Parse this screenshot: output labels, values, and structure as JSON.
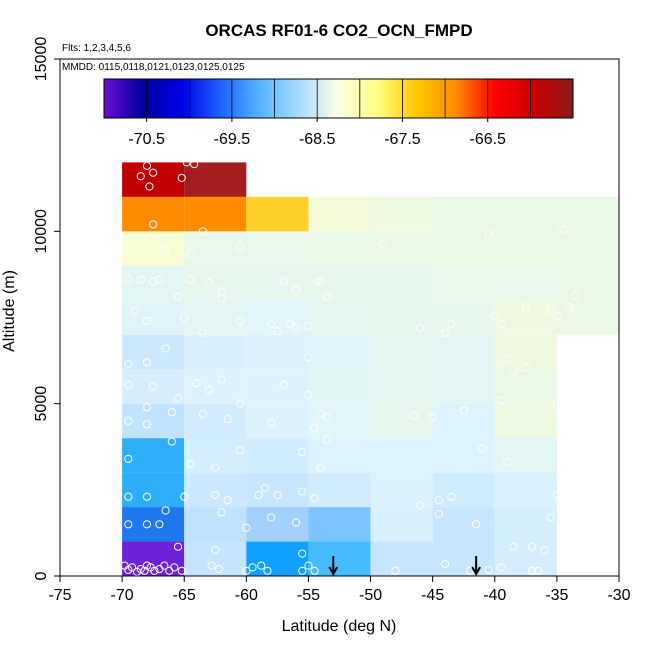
{
  "chart_data": {
    "type": "heatmap",
    "title": "ORCAS RF01-6 CO2_OCN_FMPD",
    "flights_label": "Flts: 1,2,3,4,5,6",
    "dates_label": "MMDD: 0115,0118,0121,0123,0125,0125",
    "xlabel": "Latitude (deg N)",
    "ylabel": "Altitude (m)",
    "xlim": [
      -75,
      -30
    ],
    "ylim": [
      0,
      15000
    ],
    "x_ticks": [
      "-75",
      "-70",
      "-65",
      "-60",
      "-55",
      "-50",
      "-45",
      "-40",
      "-35",
      "-30"
    ],
    "y_ticks": [
      "0",
      "5000",
      "10000",
      "15000"
    ],
    "colorbar": {
      "min": -71.0,
      "max": -65.5,
      "tick_values": [
        -70.5,
        -69.5,
        -68.5,
        -67.5,
        -66.5
      ],
      "tick_labels": [
        "-70.5",
        "-69.5",
        "-68.5",
        "-67.5",
        "-66.5"
      ],
      "colors": [
        "#6a0dd6",
        "#0000a0",
        "#0000e8",
        "#1e64ff",
        "#56b4ff",
        "#a8dcff",
        "#ffffe6",
        "#ffff80",
        "#ffc800",
        "#ff8c00",
        "#ff0000",
        "#c80000",
        "#8b1a1a"
      ]
    },
    "cells": [
      {
        "x0": -70,
        "x1": -65,
        "y0": 0,
        "y1": 1000,
        "color": "#6e22d8"
      },
      {
        "x0": -65,
        "x1": -60,
        "y0": 0,
        "y1": 1000,
        "color": "#c4e4ff"
      },
      {
        "x0": -60,
        "x1": -55,
        "y0": 0,
        "y1": 1000,
        "color": "#10a0ff"
      },
      {
        "x0": -55,
        "x1": -50,
        "y0": 0,
        "y1": 1000,
        "color": "#46bcff"
      },
      {
        "x0": -50,
        "x1": -45,
        "y0": 0,
        "y1": 1000,
        "color": "#c6e6ff"
      },
      {
        "x0": -45,
        "x1": -40,
        "y0": 0,
        "y1": 1000,
        "color": "#c6e6ff"
      },
      {
        "x0": -40,
        "x1": -35,
        "y0": 0,
        "y1": 1000,
        "color": "#d4eeff"
      },
      {
        "x0": -70,
        "x1": -65,
        "y0": 1000,
        "y1": 2000,
        "color": "#1e78ee"
      },
      {
        "x0": -65,
        "x1": -60,
        "y0": 1000,
        "y1": 2000,
        "color": "#bfe2ff"
      },
      {
        "x0": -60,
        "x1": -55,
        "y0": 1000,
        "y1": 2000,
        "color": "#a4d0ff"
      },
      {
        "x0": -55,
        "x1": -50,
        "y0": 1000,
        "y1": 2000,
        "color": "#7cc4ff"
      },
      {
        "x0": -50,
        "x1": -45,
        "y0": 1000,
        "y1": 2000,
        "color": "#d8f0ff"
      },
      {
        "x0": -45,
        "x1": -40,
        "y0": 1000,
        "y1": 2000,
        "color": "#c6e6ff"
      },
      {
        "x0": -40,
        "x1": -35,
        "y0": 1000,
        "y1": 2000,
        "color": "#d4f0ff"
      },
      {
        "x0": -70,
        "x1": -65,
        "y0": 2000,
        "y1": 3000,
        "color": "#2eaef6"
      },
      {
        "x0": -65,
        "x1": -60,
        "y0": 2000,
        "y1": 3000,
        "color": "#cce8ff"
      },
      {
        "x0": -60,
        "x1": -55,
        "y0": 2000,
        "y1": 3000,
        "color": "#c6e6ff"
      },
      {
        "x0": -55,
        "x1": -50,
        "y0": 2000,
        "y1": 3000,
        "color": "#d2ecff"
      },
      {
        "x0": -50,
        "x1": -45,
        "y0": 2000,
        "y1": 3000,
        "color": "#dbf2ff"
      },
      {
        "x0": -45,
        "x1": -40,
        "y0": 2000,
        "y1": 3000,
        "color": "#cdecff"
      },
      {
        "x0": -40,
        "x1": -35,
        "y0": 2000,
        "y1": 3000,
        "color": "#d8f2ff"
      },
      {
        "x0": -70,
        "x1": -65,
        "y0": 3000,
        "y1": 4000,
        "color": "#2eaef6"
      },
      {
        "x0": -65,
        "x1": -60,
        "y0": 3000,
        "y1": 4000,
        "color": "#d2eeff"
      },
      {
        "x0": -60,
        "x1": -55,
        "y0": 3000,
        "y1": 4000,
        "color": "#d0ecff"
      },
      {
        "x0": -55,
        "x1": -50,
        "y0": 3000,
        "y1": 4000,
        "color": "#dcf4ff"
      },
      {
        "x0": -50,
        "x1": -45,
        "y0": 3000,
        "y1": 4000,
        "color": "#dcf4ff"
      },
      {
        "x0": -45,
        "x1": -40,
        "y0": 3000,
        "y1": 4000,
        "color": "#dcf4ff"
      },
      {
        "x0": -40,
        "x1": -35,
        "y0": 3000,
        "y1": 4000,
        "color": "#e2f6f4"
      },
      {
        "x0": -70,
        "x1": -65,
        "y0": 4000,
        "y1": 5000,
        "color": "#c0e4ff"
      },
      {
        "x0": -65,
        "x1": -60,
        "y0": 4000,
        "y1": 5000,
        "color": "#d2ecff"
      },
      {
        "x0": -60,
        "x1": -55,
        "y0": 4000,
        "y1": 5000,
        "color": "#dcf2ff"
      },
      {
        "x0": -55,
        "x1": -50,
        "y0": 4000,
        "y1": 5000,
        "color": "#e0f6f8"
      },
      {
        "x0": -50,
        "x1": -45,
        "y0": 4000,
        "y1": 5000,
        "color": "#e6f8ee"
      },
      {
        "x0": -45,
        "x1": -40,
        "y0": 4000,
        "y1": 5000,
        "color": "#dcf4ff"
      },
      {
        "x0": -40,
        "x1": -35,
        "y0": 4000,
        "y1": 5000,
        "color": "#eef9e2"
      },
      {
        "x0": -70,
        "x1": -65,
        "y0": 5000,
        "y1": 6000,
        "color": "#d6eeff"
      },
      {
        "x0": -65,
        "x1": -60,
        "y0": 5000,
        "y1": 6000,
        "color": "#dcf2ff"
      },
      {
        "x0": -60,
        "x1": -55,
        "y0": 5000,
        "y1": 6000,
        "color": "#dcf2ff"
      },
      {
        "x0": -55,
        "x1": -50,
        "y0": 5000,
        "y1": 6000,
        "color": "#e0f6f4"
      },
      {
        "x0": -50,
        "x1": -45,
        "y0": 5000,
        "y1": 6000,
        "color": "#e4f6f2"
      },
      {
        "x0": -45,
        "x1": -40,
        "y0": 5000,
        "y1": 6000,
        "color": "#e2f6f4"
      },
      {
        "x0": -40,
        "x1": -35,
        "y0": 5000,
        "y1": 6000,
        "color": "#eaf8e6"
      },
      {
        "x0": -70,
        "x1": -65,
        "y0": 6000,
        "y1": 7000,
        "color": "#cbe8ff"
      },
      {
        "x0": -65,
        "x1": -60,
        "y0": 6000,
        "y1": 7000,
        "color": "#d8f0ff"
      },
      {
        "x0": -60,
        "x1": -55,
        "y0": 6000,
        "y1": 7000,
        "color": "#dcf2ff"
      },
      {
        "x0": -55,
        "x1": -50,
        "y0": 6000,
        "y1": 7000,
        "color": "#dff4fa"
      },
      {
        "x0": -50,
        "x1": -45,
        "y0": 6000,
        "y1": 7000,
        "color": "#e4f6f0"
      },
      {
        "x0": -45,
        "x1": -40,
        "y0": 6000,
        "y1": 7000,
        "color": "#e2f6f4"
      },
      {
        "x0": -40,
        "x1": -35,
        "y0": 6000,
        "y1": 7000,
        "color": "#eef9e0"
      },
      {
        "x0": -70,
        "x1": -65,
        "y0": 7000,
        "y1": 8000,
        "color": "#dff4f8"
      },
      {
        "x0": -65,
        "x1": -60,
        "y0": 7000,
        "y1": 8000,
        "color": "#e2f6f4"
      },
      {
        "x0": -60,
        "x1": -55,
        "y0": 7000,
        "y1": 8000,
        "color": "#e0f6f8"
      },
      {
        "x0": -55,
        "x1": -50,
        "y0": 7000,
        "y1": 8000,
        "color": "#e4f6f0"
      },
      {
        "x0": -50,
        "x1": -45,
        "y0": 7000,
        "y1": 8000,
        "color": "#e6f8ee"
      },
      {
        "x0": -45,
        "x1": -40,
        "y0": 7000,
        "y1": 8000,
        "color": "#e6f8ec"
      },
      {
        "x0": -40,
        "x1": -35,
        "y0": 7000,
        "y1": 8000,
        "color": "#eef9e0"
      },
      {
        "x0": -35,
        "x1": -30,
        "y0": 7000,
        "y1": 8000,
        "color": "#eaf8e6"
      },
      {
        "x0": -70,
        "x1": -65,
        "y0": 8000,
        "y1": 9000,
        "color": "#e2f6f4"
      },
      {
        "x0": -65,
        "x1": -60,
        "y0": 8000,
        "y1": 9000,
        "color": "#e6f8ee"
      },
      {
        "x0": -60,
        "x1": -55,
        "y0": 8000,
        "y1": 9000,
        "color": "#e6f8ee"
      },
      {
        "x0": -55,
        "x1": -50,
        "y0": 8000,
        "y1": 9000,
        "color": "#e6f8ec"
      },
      {
        "x0": -50,
        "x1": -45,
        "y0": 8000,
        "y1": 9000,
        "color": "#e6f8ec"
      },
      {
        "x0": -45,
        "x1": -40,
        "y0": 8000,
        "y1": 9000,
        "color": "#e8f8ea"
      },
      {
        "x0": -40,
        "x1": -35,
        "y0": 8000,
        "y1": 9000,
        "color": "#e8f8ea"
      },
      {
        "x0": -35,
        "x1": -30,
        "y0": 8000,
        "y1": 9000,
        "color": "#eaf8e6"
      },
      {
        "x0": -70,
        "x1": -65,
        "y0": 9000,
        "y1": 10000,
        "color": "#f8fcd2"
      },
      {
        "x0": -65,
        "x1": -60,
        "y0": 9000,
        "y1": 10000,
        "color": "#e8f8ea"
      },
      {
        "x0": -60,
        "x1": -55,
        "y0": 9000,
        "y1": 10000,
        "color": "#e8f8ea"
      },
      {
        "x0": -55,
        "x1": -50,
        "y0": 9000,
        "y1": 10000,
        "color": "#eaf8e6"
      },
      {
        "x0": -50,
        "x1": -45,
        "y0": 9000,
        "y1": 10000,
        "color": "#eaf8e6"
      },
      {
        "x0": -45,
        "x1": -40,
        "y0": 9000,
        "y1": 10000,
        "color": "#eaf8e6"
      },
      {
        "x0": -40,
        "x1": -35,
        "y0": 9000,
        "y1": 10000,
        "color": "#eaf8e6"
      },
      {
        "x0": -35,
        "x1": -30,
        "y0": 9000,
        "y1": 10000,
        "color": "#eaf8e6"
      },
      {
        "x0": -70,
        "x1": -65,
        "y0": 10000,
        "y1": 11000,
        "color": "#ff8c00"
      },
      {
        "x0": -65,
        "x1": -60,
        "y0": 10000,
        "y1": 11000,
        "color": "#ff8c00"
      },
      {
        "x0": -60,
        "x1": -55,
        "y0": 10000,
        "y1": 11000,
        "color": "#ffd02a"
      },
      {
        "x0": -55,
        "x1": -50,
        "y0": 10000,
        "y1": 11000,
        "color": "#f4fad8"
      },
      {
        "x0": -50,
        "x1": -45,
        "y0": 10000,
        "y1": 11000,
        "color": "#eefae0"
      },
      {
        "x0": -45,
        "x1": -40,
        "y0": 10000,
        "y1": 11000,
        "color": "#eaf8e6"
      },
      {
        "x0": -40,
        "x1": -35,
        "y0": 10000,
        "y1": 11000,
        "color": "#eaf8e6"
      },
      {
        "x0": -35,
        "x1": -30,
        "y0": 10000,
        "y1": 11000,
        "color": "#eaf8e6"
      },
      {
        "x0": -70,
        "x1": -65,
        "y0": 11000,
        "y1": 12000,
        "color": "#c00000"
      },
      {
        "x0": -65,
        "x1": -60,
        "y0": 11000,
        "y1": 12000,
        "color": "#a41e1e"
      }
    ],
    "points": [
      [
        -68.0,
        11900
      ],
      [
        -67.5,
        11700
      ],
      [
        -68.5,
        11600
      ],
      [
        -67.8,
        11300
      ],
      [
        -65.2,
        11550
      ],
      [
        -64.8,
        12000
      ],
      [
        -64.2,
        11950
      ],
      [
        -67.5,
        10200
      ],
      [
        -63.5,
        10000
      ],
      [
        -66.5,
        9450
      ],
      [
        -64.5,
        9350
      ],
      [
        -60.5,
        9550
      ],
      [
        -49.0,
        9650
      ],
      [
        -40.5,
        9900
      ],
      [
        -34.5,
        10050
      ],
      [
        -69.5,
        8600
      ],
      [
        -68.5,
        8600
      ],
      [
        -67.5,
        8550
      ],
      [
        -67.0,
        8600
      ],
      [
        -64.5,
        8600
      ],
      [
        -63.0,
        8500
      ],
      [
        -62.0,
        8250
      ],
      [
        -57.0,
        8550
      ],
      [
        -56.0,
        8300
      ],
      [
        -54.3,
        8550
      ],
      [
        -54.0,
        8550
      ],
      [
        -53.5,
        8100
      ],
      [
        -65.5,
        8100
      ],
      [
        -62.0,
        8050
      ],
      [
        -69.0,
        7700
      ],
      [
        -68.0,
        7400
      ],
      [
        -65.0,
        7500
      ],
      [
        -63.5,
        7050
      ],
      [
        -60.5,
        7400
      ],
      [
        -58.0,
        7300
      ],
      [
        -57.5,
        7100
      ],
      [
        -56.5,
        7300
      ],
      [
        -56.0,
        7200
      ],
      [
        -55.0,
        7250
      ],
      [
        -46.0,
        7200
      ],
      [
        -44.0,
        7050
      ],
      [
        -43.5,
        7300
      ],
      [
        -40.0,
        7550
      ],
      [
        -39.5,
        7300
      ],
      [
        -37.5,
        7800
      ],
      [
        -35.0,
        7550
      ],
      [
        -34.0,
        7800
      ],
      [
        -33.5,
        8150
      ],
      [
        -35.5,
        7700
      ],
      [
        -69.5,
        6150
      ],
      [
        -68.0,
        6200
      ],
      [
        -66.5,
        6600
      ],
      [
        -55.0,
        6350
      ],
      [
        -39.0,
        6300
      ],
      [
        -38.5,
        5950
      ],
      [
        -37.5,
        6050
      ],
      [
        -69.5,
        5550
      ],
      [
        -67.5,
        5500
      ],
      [
        -64.0,
        5600
      ],
      [
        -63.0,
        5400
      ],
      [
        -62.0,
        5700
      ],
      [
        -65.5,
        5150
      ],
      [
        -66.0,
        4750
      ],
      [
        -60.5,
        5000
      ],
      [
        -57.0,
        5550
      ],
      [
        -55.0,
        5250
      ],
      [
        -53.5,
        4600
      ],
      [
        -46.5,
        4650
      ],
      [
        -45.0,
        4600
      ],
      [
        -42.5,
        4800
      ],
      [
        -39.5,
        5100
      ],
      [
        -35.0,
        4950
      ],
      [
        -68.0,
        4900
      ],
      [
        -68.0,
        4400
      ],
      [
        -69.5,
        4500
      ],
      [
        -63.5,
        4700
      ],
      [
        -61.5,
        4550
      ],
      [
        -58.0,
        4450
      ],
      [
        -54.5,
        4300
      ],
      [
        -54.0,
        4700
      ],
      [
        -60.5,
        3650
      ],
      [
        -66.0,
        3900
      ],
      [
        -64.5,
        3250
      ],
      [
        -62.5,
        3150
      ],
      [
        -55.5,
        3600
      ],
      [
        -54.0,
        3150
      ],
      [
        -53.5,
        3950
      ],
      [
        -41.0,
        3700
      ],
      [
        -39.0,
        3300
      ],
      [
        -69.5,
        3400
      ],
      [
        -69.5,
        2300
      ],
      [
        -68.0,
        2300
      ],
      [
        -65.0,
        2300
      ],
      [
        -62.5,
        2350
      ],
      [
        -61.5,
        2200
      ],
      [
        -59.0,
        2350
      ],
      [
        -58.5,
        2550
      ],
      [
        -57.5,
        2350
      ],
      [
        -55.5,
        2450
      ],
      [
        -54.5,
        2250
      ],
      [
        -44.5,
        2200
      ],
      [
        -43.5,
        2300
      ],
      [
        -35.0,
        2350
      ],
      [
        -69.5,
        1500
      ],
      [
        -68.0,
        1500
      ],
      [
        -67.0,
        1500
      ],
      [
        -66.5,
        1900
      ],
      [
        -62.0,
        1850
      ],
      [
        -60.0,
        1400
      ],
      [
        -58.0,
        1700
      ],
      [
        -56.0,
        1550
      ],
      [
        -46.0,
        2050
      ],
      [
        -44.5,
        1800
      ],
      [
        -41.5,
        1500
      ],
      [
        -35.5,
        1700
      ],
      [
        -65.5,
        850
      ],
      [
        -62.5,
        750
      ],
      [
        -55.5,
        650
      ],
      [
        -38.5,
        850
      ],
      [
        -37.0,
        850
      ],
      [
        -36.0,
        750
      ],
      [
        -69.8,
        300
      ],
      [
        -69.5,
        180
      ],
      [
        -69.2,
        250
      ],
      [
        -68.8,
        120
      ],
      [
        -68.5,
        200
      ],
      [
        -68.2,
        150
      ],
      [
        -68.0,
        300
      ],
      [
        -67.7,
        250
      ],
      [
        -67.4,
        150
      ],
      [
        -67.0,
        200
      ],
      [
        -66.6,
        300
      ],
      [
        -66.2,
        150
      ],
      [
        -65.8,
        250
      ],
      [
        -65.2,
        150
      ],
      [
        -62.8,
        300
      ],
      [
        -62.2,
        200
      ],
      [
        -60.0,
        150
      ],
      [
        -59.5,
        250
      ],
      [
        -58.8,
        300
      ],
      [
        -58.3,
        150
      ],
      [
        -55.5,
        150
      ],
      [
        -55.0,
        300
      ],
      [
        -54.5,
        150
      ],
      [
        -48.0,
        150
      ],
      [
        -44.0,
        350
      ],
      [
        -42.0,
        150
      ],
      [
        -40.5,
        180
      ],
      [
        -39.5,
        250
      ],
      [
        -37.0,
        150
      ],
      [
        -36.5,
        150
      ]
    ],
    "arrows_x": [
      -53,
      -41.5
    ]
  }
}
